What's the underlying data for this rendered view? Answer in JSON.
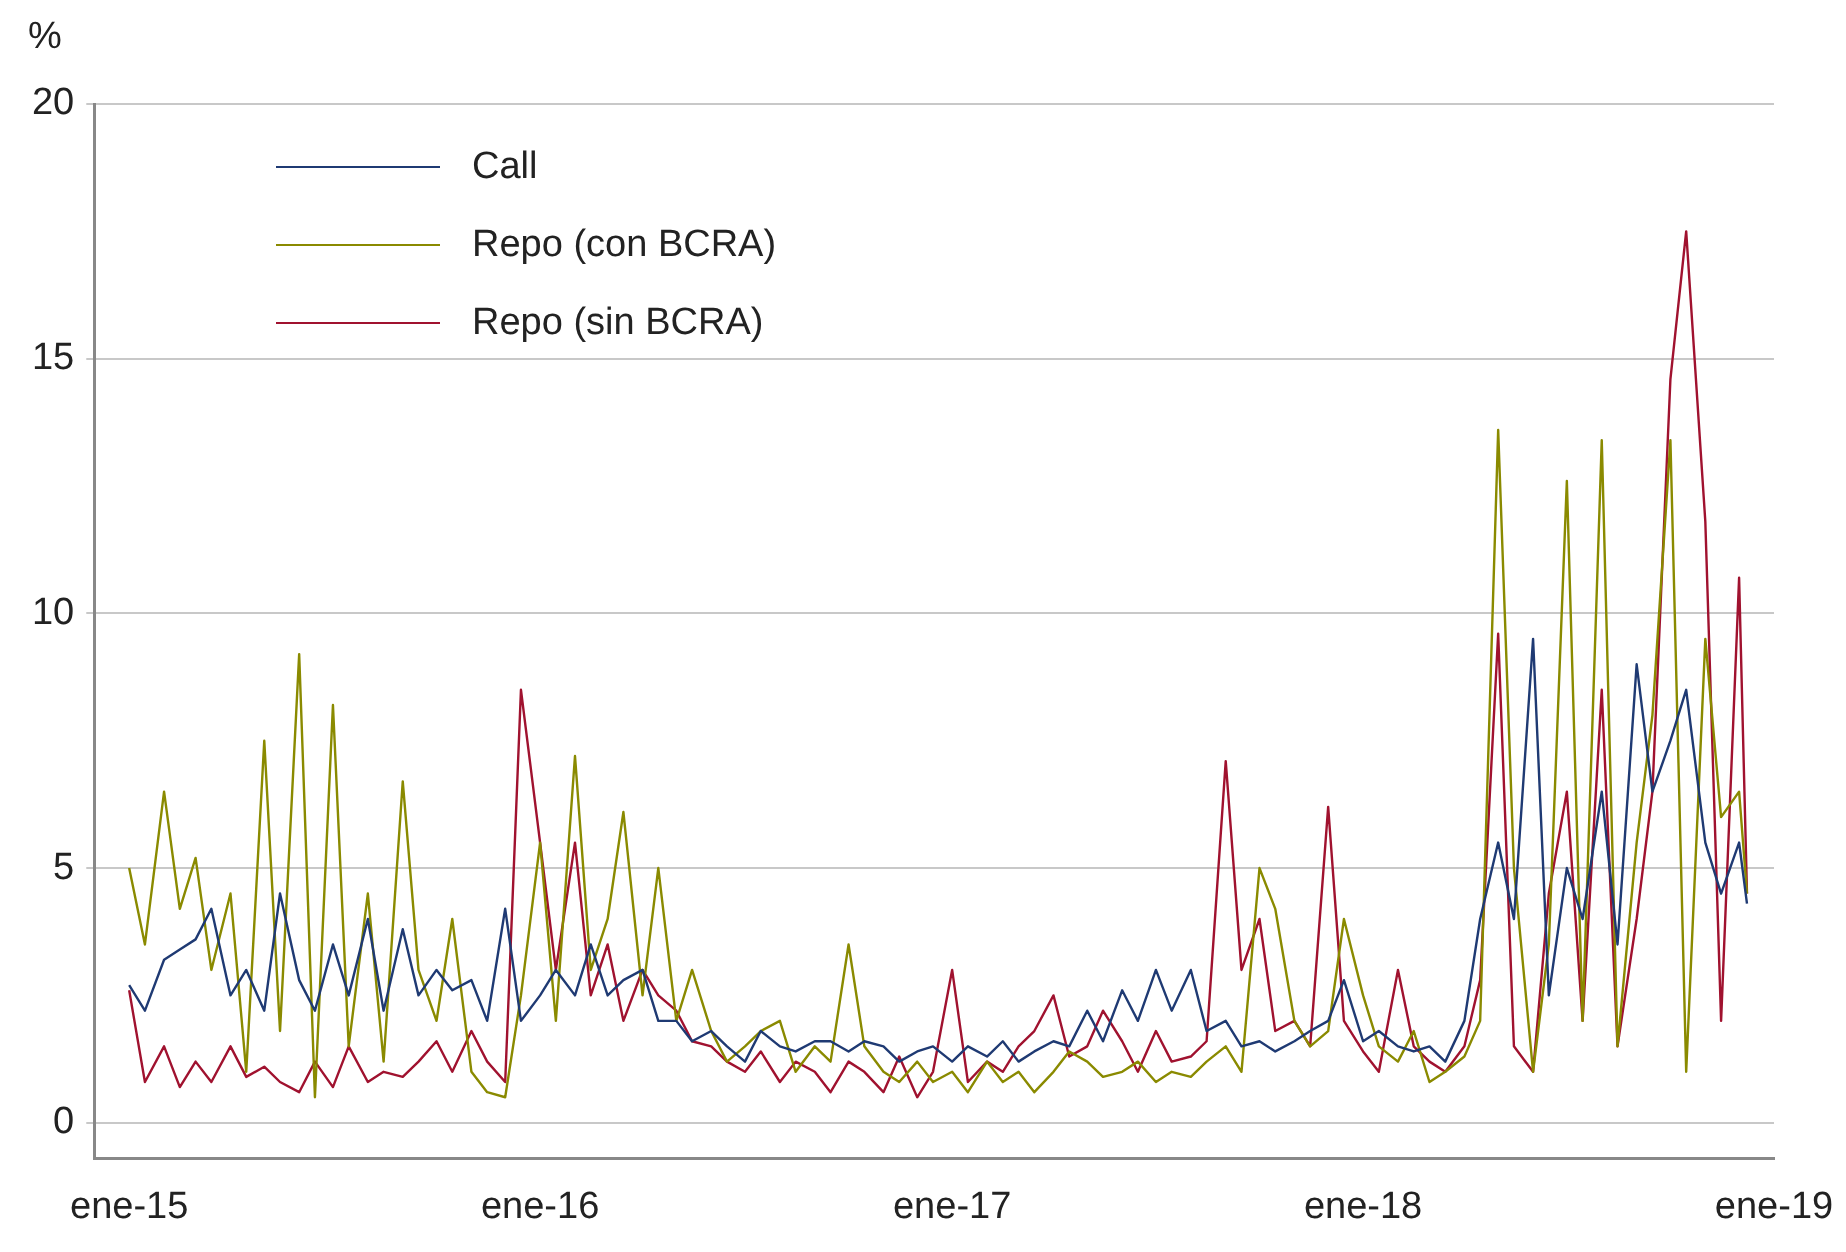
{
  "chart_data": {
    "type": "line",
    "ylabel": "%",
    "legend": "top left",
    "grid": "y",
    "marker": "none",
    "line_style": "solid",
    "xlim": [
      "2014-12-01",
      "2019-01-01"
    ],
    "ylim": [
      -0.7,
      20
    ],
    "yticks": [
      0,
      5,
      10,
      15,
      20
    ],
    "xticks": [
      {
        "value": "2015-01",
        "label": "ene-15"
      },
      {
        "value": "2016-01",
        "label": "ene-16"
      },
      {
        "value": "2017-01",
        "label": "ene-17"
      },
      {
        "value": "2018-01",
        "label": "ene-18"
      },
      {
        "value": "2019-01",
        "label": "ene-19"
      }
    ],
    "x": [
      "2015-01-01",
      "2015-01-15",
      "2015-02-01",
      "2015-02-15",
      "2015-03-01",
      "2015-03-15",
      "2015-04-01",
      "2015-04-15",
      "2015-05-01",
      "2015-05-15",
      "2015-06-01",
      "2015-06-15",
      "2015-07-01",
      "2015-07-15",
      "2015-08-01",
      "2015-08-15",
      "2015-09-01",
      "2015-09-15",
      "2015-10-01",
      "2015-10-15",
      "2015-11-01",
      "2015-11-15",
      "2015-12-01",
      "2015-12-15",
      "2016-01-01",
      "2016-01-15",
      "2016-02-01",
      "2016-02-15",
      "2016-03-01",
      "2016-03-15",
      "2016-04-01",
      "2016-04-15",
      "2016-05-01",
      "2016-05-15",
      "2016-06-01",
      "2016-06-15",
      "2016-07-01",
      "2016-07-15",
      "2016-08-01",
      "2016-08-15",
      "2016-09-01",
      "2016-09-15",
      "2016-10-01",
      "2016-10-15",
      "2016-11-01",
      "2016-11-15",
      "2016-12-01",
      "2016-12-15",
      "2017-01-01",
      "2017-01-15",
      "2017-02-01",
      "2017-02-15",
      "2017-03-01",
      "2017-03-15",
      "2017-04-01",
      "2017-04-15",
      "2017-05-01",
      "2017-05-15",
      "2017-06-01",
      "2017-06-15",
      "2017-07-01",
      "2017-07-15",
      "2017-08-01",
      "2017-08-15",
      "2017-09-01",
      "2017-09-15",
      "2017-10-01",
      "2017-10-15",
      "2017-11-01",
      "2017-11-15",
      "2017-12-01",
      "2017-12-15",
      "2018-01-01",
      "2018-01-15",
      "2018-02-01",
      "2018-02-15",
      "2018-03-01",
      "2018-03-15",
      "2018-04-01",
      "2018-04-15",
      "2018-05-01",
      "2018-05-15",
      "2018-06-01",
      "2018-06-15",
      "2018-07-01",
      "2018-07-15",
      "2018-08-01",
      "2018-08-15",
      "2018-09-01",
      "2018-09-15",
      "2018-10-01",
      "2018-10-15",
      "2018-11-01",
      "2018-11-15",
      "2018-12-01",
      "2018-12-08"
    ],
    "series": [
      {
        "name": "Call",
        "color": "#1f3a73",
        "values": [
          2.7,
          2.2,
          3.2,
          3.4,
          3.6,
          4.2,
          2.5,
          3.0,
          2.2,
          4.5,
          2.8,
          2.2,
          3.5,
          2.5,
          4.0,
          2.2,
          3.8,
          2.5,
          3.0,
          2.6,
          2.8,
          2.0,
          4.2,
          2.0,
          2.5,
          3.0,
          2.5,
          3.5,
          2.5,
          2.8,
          3.0,
          2.0,
          2.0,
          1.6,
          1.8,
          1.5,
          1.2,
          1.8,
          1.5,
          1.4,
          1.6,
          1.6,
          1.4,
          1.6,
          1.5,
          1.2,
          1.4,
          1.5,
          1.2,
          1.5,
          1.3,
          1.6,
          1.2,
          1.4,
          1.6,
          1.5,
          2.2,
          1.6,
          2.6,
          2.0,
          3.0,
          2.2,
          3.0,
          1.8,
          2.0,
          1.5,
          1.6,
          1.4,
          1.6,
          1.8,
          2.0,
          2.8,
          1.6,
          1.8,
          1.5,
          1.4,
          1.5,
          1.2,
          2.0,
          4.0,
          5.5,
          4.0,
          9.5,
          2.5,
          5.0,
          4.0,
          6.5,
          3.5,
          9.0,
          6.5,
          7.5,
          8.5,
          5.5,
          4.5,
          5.5,
          4.3
        ]
      },
      {
        "name": "Repo (con BCRA)",
        "color": "#8a8a00",
        "values": [
          5.0,
          3.5,
          6.5,
          4.2,
          5.2,
          3.0,
          4.5,
          1.0,
          7.5,
          1.8,
          9.2,
          0.5,
          8.2,
          1.5,
          4.5,
          1.2,
          6.7,
          3.0,
          2.0,
          4.0,
          1.0,
          0.6,
          0.5,
          2.5,
          5.5,
          2.0,
          7.2,
          3.0,
          4.0,
          6.1,
          2.5,
          5.0,
          2.0,
          3.0,
          1.8,
          1.2,
          1.5,
          1.8,
          2.0,
          1.0,
          1.5,
          1.2,
          3.5,
          1.5,
          1.0,
          0.8,
          1.2,
          0.8,
          1.0,
          0.6,
          1.2,
          0.8,
          1.0,
          0.6,
          1.0,
          1.4,
          1.2,
          0.9,
          1.0,
          1.2,
          0.8,
          1.0,
          0.9,
          1.2,
          1.5,
          1.0,
          5.0,
          4.2,
          2.0,
          1.5,
          1.8,
          4.0,
          2.5,
          1.5,
          1.2,
          1.8,
          0.8,
          1.0,
          1.3,
          2.0,
          13.6,
          5.0,
          1.0,
          3.5,
          12.6,
          2.0,
          13.4,
          1.5,
          5.5,
          8.0,
          13.4,
          1.0,
          9.5,
          6.0,
          6.5,
          4.5
        ]
      },
      {
        "name": "Repo (sin BCRA)",
        "color": "#a0122f",
        "values": [
          2.6,
          0.8,
          1.5,
          0.7,
          1.2,
          0.8,
          1.5,
          0.9,
          1.1,
          0.8,
          0.6,
          1.2,
          0.7,
          1.5,
          0.8,
          1.0,
          0.9,
          1.2,
          1.6,
          1.0,
          1.8,
          1.2,
          0.8,
          8.5,
          5.5,
          3.0,
          5.5,
          2.5,
          3.5,
          2.0,
          3.0,
          2.5,
          2.2,
          1.6,
          1.5,
          1.2,
          1.0,
          1.4,
          0.8,
          1.2,
          1.0,
          0.6,
          1.2,
          1.0,
          0.6,
          1.3,
          0.5,
          1.0,
          3.0,
          0.8,
          1.2,
          1.0,
          1.5,
          1.8,
          2.5,
          1.3,
          1.5,
          2.2,
          1.6,
          1.0,
          1.8,
          1.2,
          1.3,
          1.6,
          7.1,
          3.0,
          4.0,
          1.8,
          2.0,
          1.5,
          6.2,
          2.0,
          1.4,
          1.0,
          3.0,
          1.5,
          1.2,
          1.0,
          1.5,
          2.8,
          9.6,
          1.5,
          1.0,
          4.5,
          6.5,
          2.0,
          8.5,
          1.5,
          4.0,
          6.5,
          14.6,
          17.5,
          11.8,
          2.0,
          10.7,
          4.5
        ]
      }
    ]
  }
}
